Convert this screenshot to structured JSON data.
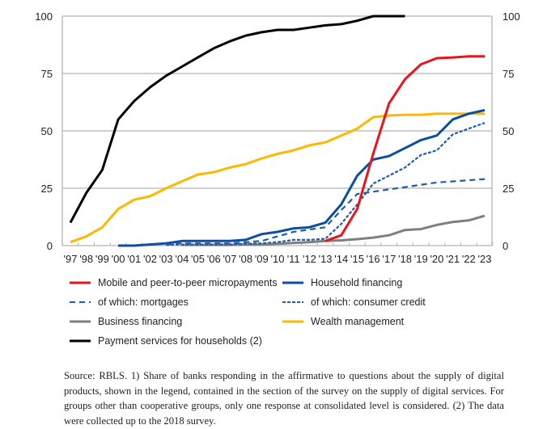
{
  "chart_data": {
    "type": "line",
    "title": "",
    "xlabel": "",
    "ylabel": "",
    "ylim": [
      0,
      100
    ],
    "yticks": [
      0,
      25,
      50,
      75,
      100
    ],
    "grid": true,
    "legend_position": "bottom",
    "categories": [
      "'97",
      "'98",
      "'99",
      "'00",
      "'01",
      "'02",
      "'03",
      "'04",
      "'05",
      "'06",
      "'07",
      "'08",
      "'09",
      "'10",
      "'11",
      "'12",
      "'13",
      "'14",
      "'15",
      "'16",
      "'17",
      "'18",
      "'19",
      "'20",
      "'21",
      "'22",
      "'23"
    ],
    "series": [
      {
        "name": "Mobile and peer-to-peer micropayments",
        "color": "#e8151b",
        "dash": "solid",
        "values": [
          null,
          null,
          null,
          null,
          null,
          null,
          null,
          null,
          null,
          null,
          null,
          null,
          null,
          null,
          null,
          null,
          2,
          4.5,
          16,
          40,
          62,
          72.5,
          79,
          81.7,
          82,
          82.5,
          82.5
        ]
      },
      {
        "name": "Household financing",
        "color": "#0b4ea2",
        "dash": "solid",
        "values": [
          null,
          null,
          null,
          0,
          0,
          0.5,
          1,
          2,
          2,
          2,
          2,
          2.5,
          5,
          6,
          7.5,
          8,
          10,
          18,
          30.5,
          37.5,
          39,
          42.5,
          46,
          48,
          55,
          57.5,
          59
        ]
      },
      {
        "name": "of which: mortgages",
        "color": "#1f5bb0",
        "dash": "long",
        "values": [
          null,
          null,
          null,
          null,
          null,
          null,
          0.5,
          1,
          1,
          1,
          1,
          1.5,
          2,
          4,
          6,
          7,
          8,
          15.5,
          22.5,
          23.5,
          24.5,
          25.5,
          26.5,
          27.5,
          28,
          28.5,
          29
        ]
      },
      {
        "name": "of which: consumer credit",
        "color": "#1f5bb0",
        "dash": "short",
        "values": [
          null,
          null,
          null,
          null,
          null,
          null,
          0.3,
          0.5,
          0.5,
          0.5,
          0.5,
          0.8,
          1,
          1.5,
          2.5,
          2.5,
          3,
          9.5,
          18,
          27,
          30.5,
          34,
          39.5,
          41.5,
          48.5,
          51,
          53.5
        ]
      },
      {
        "name": "Business financing",
        "color": "#7f7f7f",
        "dash": "solid",
        "values": [
          null,
          null,
          null,
          null,
          null,
          null,
          null,
          0.3,
          0.3,
          0.3,
          0.3,
          0.5,
          0.5,
          0.8,
          1.2,
          1.5,
          2,
          2.3,
          2.8,
          3.5,
          4.5,
          6.8,
          7.2,
          9,
          10.3,
          11,
          13
        ]
      },
      {
        "name": "Wealth management",
        "color": "#ffb800",
        "dash": "solid",
        "values": [
          1.5,
          4,
          8,
          16,
          20,
          21.5,
          25,
          28,
          31,
          32,
          34,
          35.5,
          38,
          40,
          41.5,
          43.7,
          45,
          48,
          51,
          56,
          56.7,
          57,
          57,
          57.5,
          57.5,
          57.5,
          57.5
        ]
      },
      {
        "name": "Payment services for households (2)",
        "color": "#000000",
        "dash": "solid",
        "values": [
          10,
          23,
          33,
          55,
          63,
          69,
          74,
          78,
          82,
          86,
          89,
          91.5,
          93,
          94,
          94,
          95,
          96,
          96.5,
          98,
          100,
          100,
          100,
          null,
          null,
          null,
          null,
          null
        ]
      }
    ]
  },
  "legend": {
    "items": [
      "Mobile and peer-to-peer micropayments",
      "Household financing",
      "of which: mortgages",
      "of which: consumer credit",
      "Business financing",
      "Wealth management",
      "Payment services for households (2)"
    ]
  },
  "note": "Source: RBLS. 1) Share of banks responding in the affirmative to questions about the supply of digital products, shown in the legend, contained in the section of the survey on the supply of digital services. For groups other than cooperative groups, only one response at consolidated level is considered. (2) The data were collected up to the 2018 survey."
}
